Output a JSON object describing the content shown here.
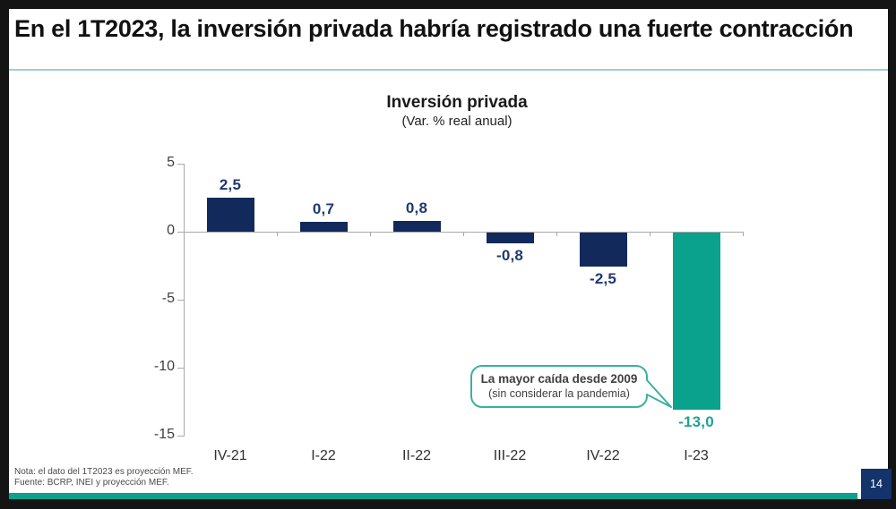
{
  "slide": {
    "title": "En el 1T2023, la inversión privada habría registrado una fuerte contracción",
    "note_line1": "Nota: el dato del 1T2023 es proyección MEF.",
    "note_line2": "Fuente: BCRP, INEI y proyección MEF.",
    "page_number": "14"
  },
  "chart_data": {
    "type": "bar",
    "title": "Inversión privada",
    "subtitle": "(Var. % real anual)",
    "categories": [
      "IV-21",
      "I-22",
      "II-22",
      "III-22",
      "IV-22",
      "I-23"
    ],
    "values": [
      2.5,
      0.7,
      0.8,
      -0.8,
      -2.5,
      -13.0
    ],
    "value_labels": [
      "2,5",
      "0,7",
      "0,8",
      "-0,8",
      "-2,5",
      "-13,0"
    ],
    "bar_colors": [
      "#12295c",
      "#12295c",
      "#12295c",
      "#12295c",
      "#12295c",
      "#0aa18d"
    ],
    "label_colors": [
      "#1e3a70",
      "#1e3a70",
      "#1e3a70",
      "#1e3a70",
      "#1e3a70",
      "#21a392"
    ],
    "ylim": [
      -15,
      5
    ],
    "yticks": [
      5,
      0,
      -5,
      -10,
      -15
    ],
    "ytick_labels": [
      "5",
      "0",
      "-5",
      "-10",
      "-15"
    ],
    "grid": false,
    "legend": null,
    "annotation": {
      "line1": "La mayor caída desde 2009",
      "line2": "(sin considerar la pandemia)"
    }
  },
  "colors": {
    "accent_teal": "#0aa18d",
    "navy": "#12295c",
    "title_rule": "#9bd1cc",
    "callout_border": "#3cb0a0",
    "axis_gray": "#a8a8a8",
    "page_box_navy": "#14336b"
  }
}
